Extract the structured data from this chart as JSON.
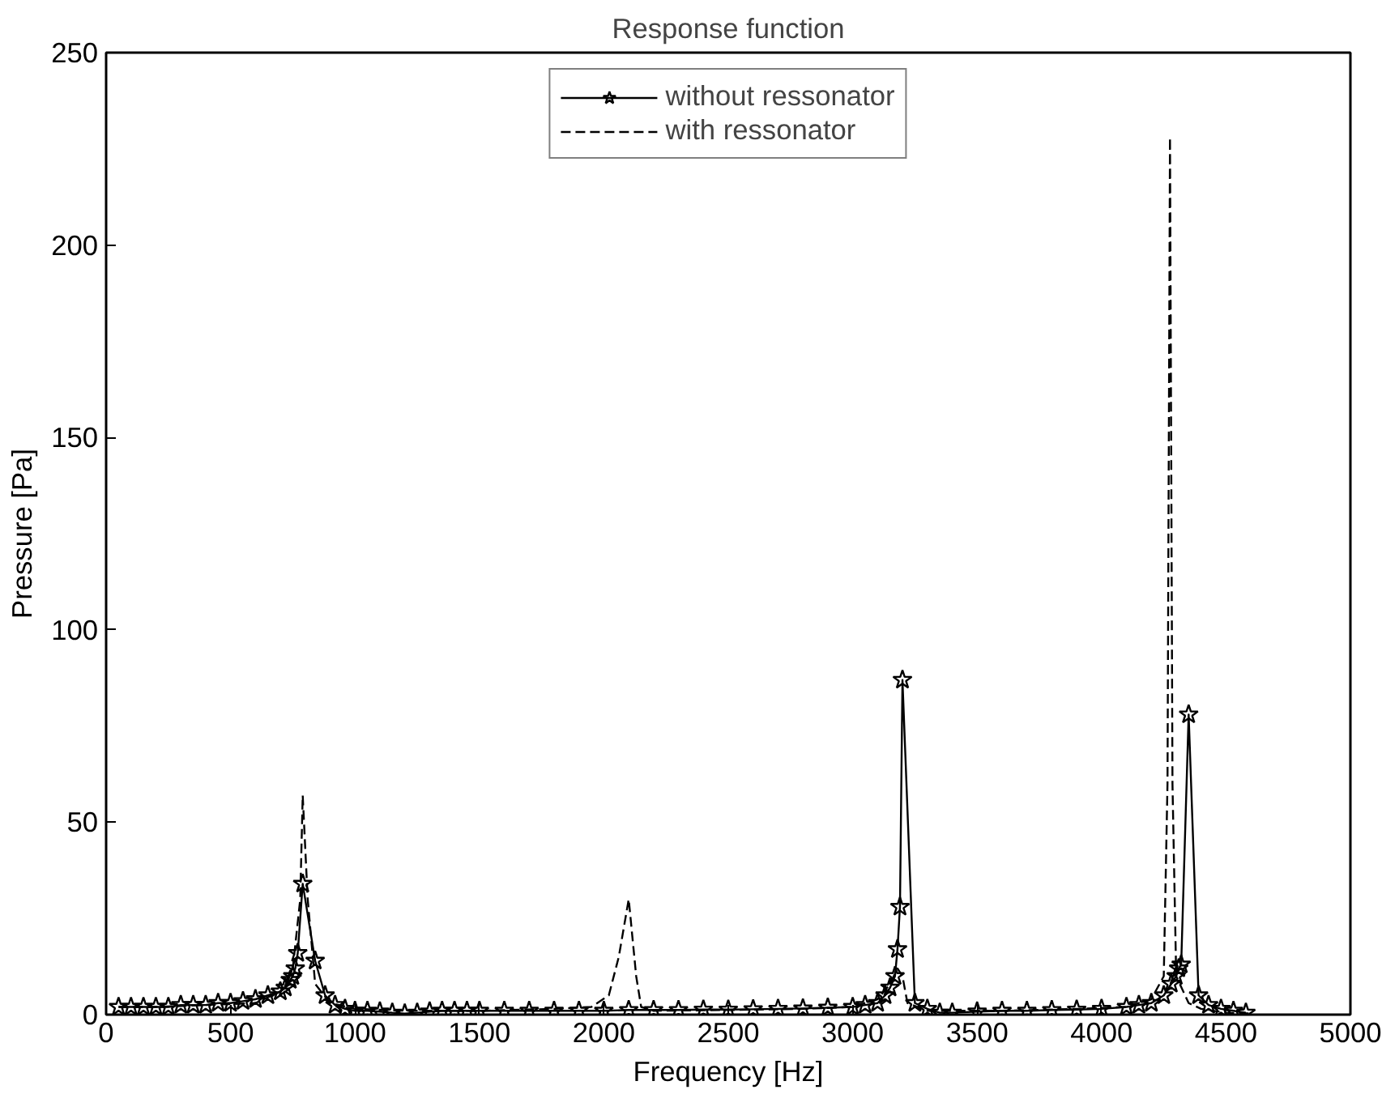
{
  "chart_data": {
    "type": "line",
    "title": "Response function",
    "xlabel": "Frequency [Hz]",
    "ylabel": "Pressure [Pa]",
    "xlim": [
      0,
      5000
    ],
    "xticks": [
      0,
      500,
      1000,
      1500,
      2000,
      2500,
      3000,
      3500,
      4000,
      4500,
      5000
    ],
    "ylim": [
      0,
      250
    ],
    "yticks": [
      0,
      50,
      100,
      150,
      200,
      250
    ],
    "grid": false,
    "legend": "top",
    "series": [
      {
        "name": "without ressonator",
        "color": "#000000",
        "marker": "star",
        "line_style": "solid",
        "x": [
          50,
          100,
          150,
          200,
          250,
          300,
          350,
          400,
          450,
          500,
          550,
          600,
          650,
          700,
          720,
          740,
          750,
          760,
          770,
          790,
          840,
          880,
          920,
          960,
          1000,
          1050,
          1100,
          1150,
          1200,
          1250,
          1300,
          1350,
          1400,
          1450,
          1500,
          1600,
          1700,
          1800,
          1900,
          2000,
          2100,
          2200,
          2300,
          2400,
          2500,
          2600,
          2700,
          2800,
          2900,
          3000,
          3050,
          3100,
          3130,
          3150,
          3170,
          3180,
          3190,
          3200,
          3250,
          3300,
          3350,
          3400,
          3500,
          3600,
          3700,
          3800,
          3900,
          4000,
          4100,
          4150,
          4200,
          4250,
          4280,
          4300,
          4310,
          4320,
          4350,
          4390,
          4430,
          4480,
          4530,
          4580
        ],
        "values": [
          2,
          2,
          2,
          2,
          2,
          2.5,
          2.5,
          2.5,
          3,
          3,
          3.5,
          4,
          5,
          6,
          7,
          9,
          10,
          12,
          16,
          34,
          14,
          5,
          2.5,
          1.5,
          1,
          1,
          0.8,
          0.5,
          0.3,
          0.5,
          0.8,
          1,
          1,
          1,
          1,
          1,
          1,
          1,
          1,
          1,
          1.2,
          1.2,
          1.2,
          1.3,
          1.3,
          1.4,
          1.5,
          1.6,
          1.8,
          2,
          2.5,
          3,
          5,
          7,
          10,
          17,
          28,
          87,
          3,
          1.5,
          0.5,
          0.5,
          0.8,
          1,
          1,
          1.2,
          1.3,
          1.5,
          2,
          2.5,
          3,
          5,
          8,
          10,
          12,
          13,
          78,
          5,
          2.5,
          1.5,
          1,
          0.5
        ]
      },
      {
        "name": "with ressonator",
        "color": "#000000",
        "marker": "none",
        "line_style": "dashed",
        "x": [
          50,
          200,
          400,
          600,
          700,
          750,
          780,
          790,
          810,
          840,
          900,
          1000,
          1200,
          1500,
          1800,
          1950,
          2020,
          2060,
          2100,
          2130,
          2150,
          2200,
          2500,
          2800,
          3000,
          3100,
          3150,
          3180,
          3200,
          3220,
          3300,
          3600,
          3900,
          4100,
          4200,
          4250,
          4265,
          4275,
          4285,
          4300,
          4350,
          4400,
          4500,
          4600
        ],
        "values": [
          2,
          2,
          2.5,
          3,
          6,
          12,
          30,
          57,
          30,
          8,
          3,
          1.5,
          1,
          1,
          1.5,
          2,
          5,
          15,
          30,
          10,
          2,
          1,
          1.2,
          1.5,
          2,
          4,
          8,
          12,
          10,
          3,
          1,
          1,
          1.5,
          2,
          4,
          10,
          60,
          228,
          60,
          10,
          3,
          1.5,
          0.5,
          0.3
        ]
      }
    ]
  }
}
